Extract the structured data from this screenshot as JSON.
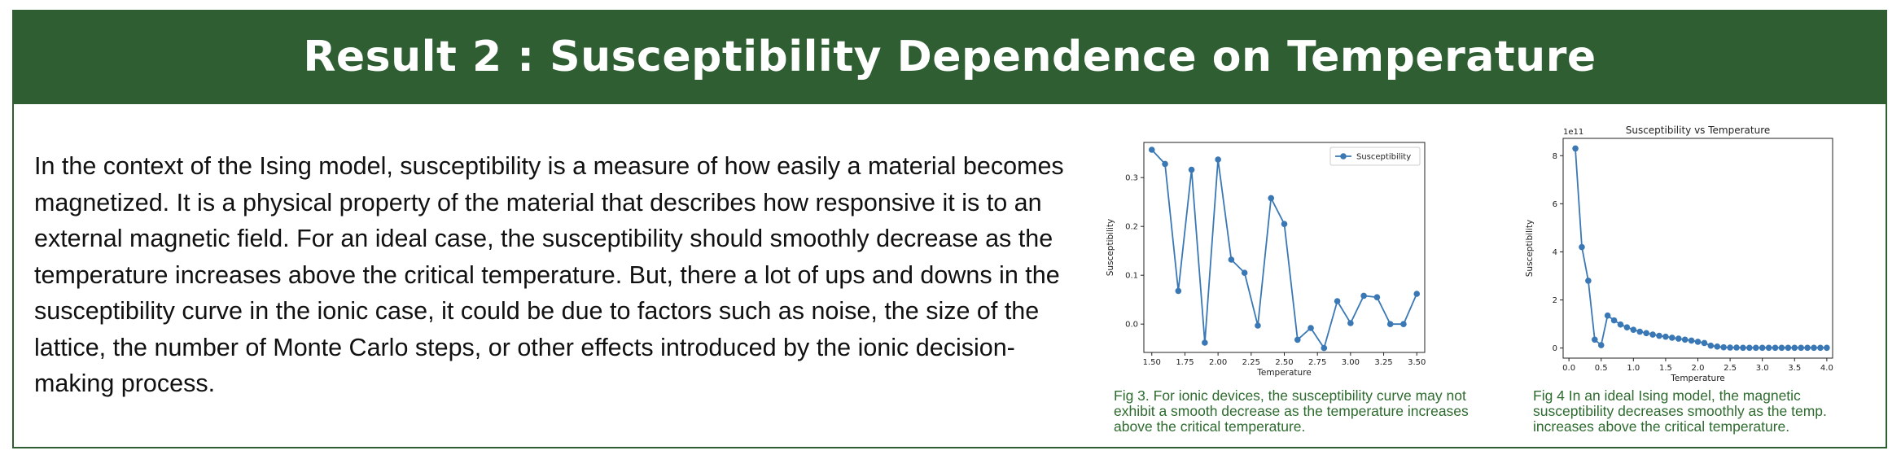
{
  "header": {
    "title": "Result 2 :  Susceptibility Dependence on Temperature"
  },
  "description": "In the context of the Ising model, susceptibility is a measure of how easily a material becomes magnetized. It is a physical property of the material that describes how responsive it is to an external magnetic field. For an ideal case, the susceptibility should smoothly decrease as the temperature increases above the critical temperature. But, there a lot of ups and downs in the susceptibility curve in the ionic case, it could be due to factors such as noise, the size of the lattice, the number of Monte Carlo steps, or other effects introduced by the ionic decision-making process.",
  "colors": {
    "banner": "#2e5e32",
    "series": "#3a78b5",
    "caption": "#2e6b2f"
  },
  "figures": {
    "fig3": {
      "caption": "Fig 3.  For ionic devices, the susceptibility curve may not exhibit a smooth decrease as the temperature increases above the critical temperature."
    },
    "fig4": {
      "caption": "Fig 4 In an ideal Ising model, the magnetic susceptibility decreases smoothly as the temp. increases above the critical temperature."
    }
  },
  "chart_data": [
    {
      "type": "line",
      "title": "",
      "xlabel": "Temperature",
      "ylabel": "Susceptibility",
      "legend": {
        "entries": [
          "Susceptibility"
        ],
        "placement": "top-right"
      },
      "xlim": [
        1.44,
        3.56
      ],
      "ylim": [
        -0.058,
        0.372
      ],
      "xticks": [
        "1.50",
        "1.75",
        "2.00",
        "2.25",
        "2.50",
        "2.75",
        "3.00",
        "3.25",
        "3.50"
      ],
      "yticks": [
        "0.0",
        "0.1",
        "0.2",
        "0.3"
      ],
      "grid": false,
      "series": [
        {
          "name": "Susceptibility",
          "x": [
            1.5,
            1.6,
            1.7,
            1.8,
            1.9,
            2.0,
            2.1,
            2.2,
            2.3,
            2.4,
            2.5,
            2.6,
            2.7,
            2.8,
            2.9,
            3.0,
            3.1,
            3.2,
            3.3,
            3.4,
            3.5
          ],
          "y": [
            0.357,
            0.328,
            0.068,
            0.316,
            -0.038,
            0.337,
            0.132,
            0.105,
            -0.003,
            0.258,
            0.205,
            -0.032,
            -0.008,
            -0.049,
            0.047,
            0.002,
            0.058,
            0.055,
            0.0,
            0.0,
            0.062
          ]
        }
      ]
    },
    {
      "type": "line",
      "title": "Susceptibility vs Temperature",
      "xlabel": "Temperature",
      "ylabel": "Susceptibility",
      "offset_label": "1e11",
      "xlim": [
        -0.09,
        4.09
      ],
      "ylim": [
        -0.42,
        8.72
      ],
      "xticks": [
        "0.0",
        "0.5",
        "1.0",
        "1.5",
        "2.0",
        "2.5",
        "3.0",
        "3.5",
        "4.0"
      ],
      "yticks": [
        "0",
        "2",
        "4",
        "6",
        "8"
      ],
      "grid": false,
      "series": [
        {
          "name": "",
          "x": [
            0.1,
            0.2,
            0.3,
            0.4,
            0.5,
            0.6,
            0.7,
            0.8,
            0.9,
            1.0,
            1.1,
            1.2,
            1.3,
            1.4,
            1.5,
            1.6,
            1.7,
            1.8,
            1.9,
            2.0,
            2.1,
            2.2,
            2.3,
            2.4,
            2.5,
            2.6,
            2.7,
            2.8,
            2.9,
            3.0,
            3.1,
            3.2,
            3.3,
            3.4,
            3.5,
            3.6,
            3.7,
            3.8,
            3.9,
            4.0
          ],
          "y": [
            8.3,
            4.2,
            2.8,
            0.35,
            0.12,
            1.35,
            1.15,
            0.98,
            0.86,
            0.76,
            0.68,
            0.62,
            0.56,
            0.51,
            0.47,
            0.43,
            0.39,
            0.35,
            0.31,
            0.26,
            0.21,
            0.1,
            0.06,
            0.03,
            0.02,
            0.02,
            0.01,
            0.01,
            0.01,
            0.01,
            0.01,
            0.01,
            0.01,
            0.01,
            0.01,
            0.01,
            0.01,
            0.01,
            0.01,
            0.01
          ]
        }
      ]
    }
  ]
}
